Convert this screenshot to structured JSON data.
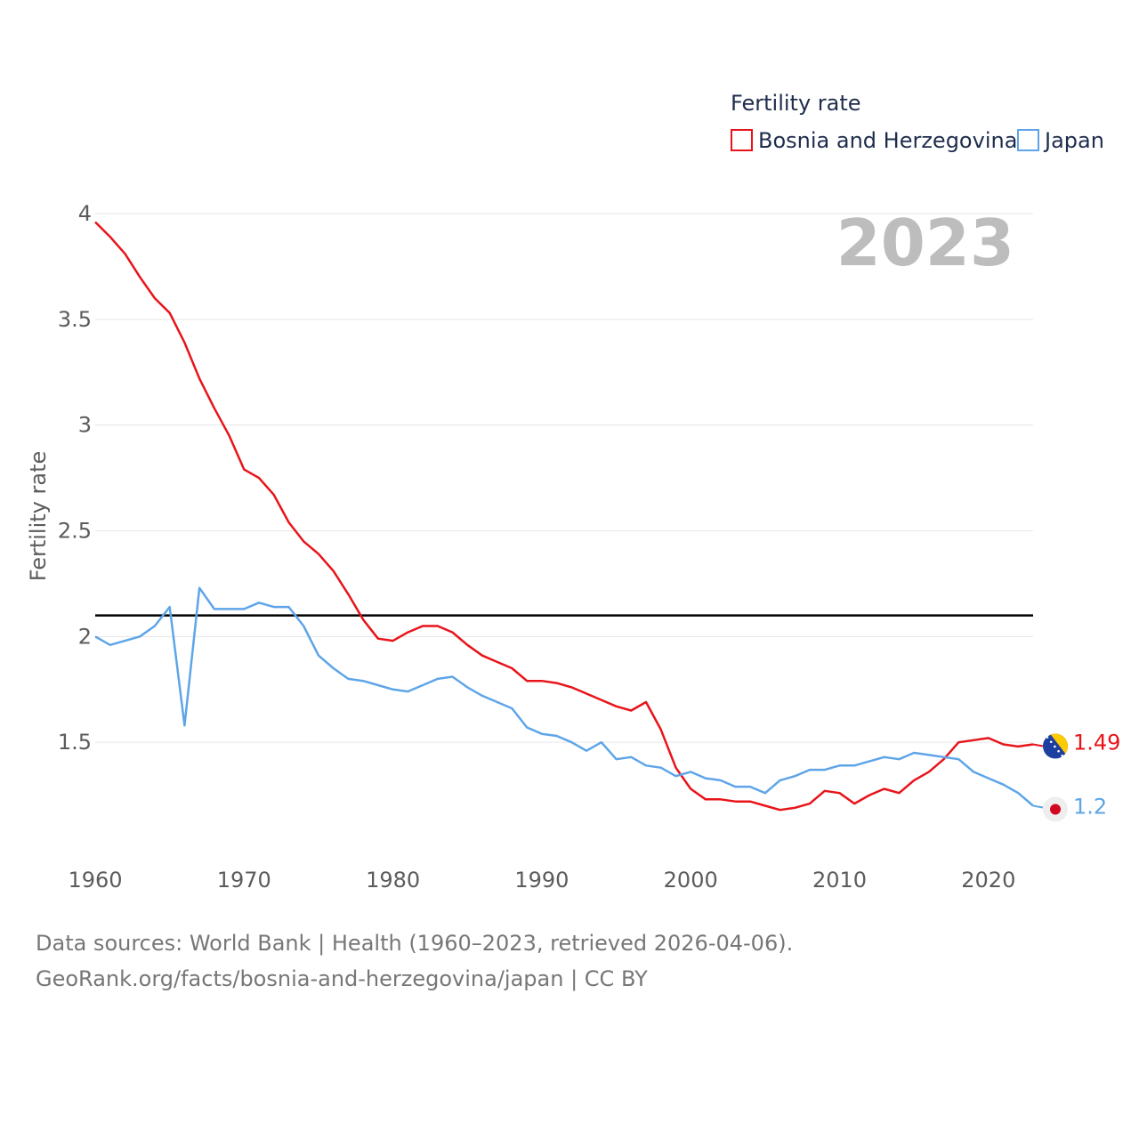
{
  "chart_data": {
    "type": "line",
    "ylabel": "Fertility rate",
    "xlabel": "",
    "xlim": [
      1960,
      2023
    ],
    "ylim": [
      1.0,
      4.0
    ],
    "y_ticks": [
      1.5,
      2,
      2.5,
      3,
      3.5,
      4
    ],
    "y_tick_labels": [
      "1.5",
      "2",
      "2.5",
      "3",
      "3.5",
      "4"
    ],
    "x_ticks": [
      1960,
      1970,
      1980,
      1990,
      2000,
      2010,
      2020
    ],
    "x_tick_labels": [
      "1960",
      "1970",
      "1980",
      "1990",
      "2000",
      "2010",
      "2020"
    ],
    "legend_title": "Fertility rate",
    "legend_position": "top-right",
    "current_year": "2023",
    "reference_line": 2.1,
    "x": [
      1960,
      1961,
      1962,
      1963,
      1964,
      1965,
      1966,
      1967,
      1968,
      1969,
      1970,
      1971,
      1972,
      1973,
      1974,
      1975,
      1976,
      1977,
      1978,
      1979,
      1980,
      1981,
      1982,
      1983,
      1984,
      1985,
      1986,
      1987,
      1988,
      1989,
      1990,
      1991,
      1992,
      1993,
      1994,
      1995,
      1996,
      1997,
      1998,
      1999,
      2000,
      2001,
      2002,
      2003,
      2004,
      2005,
      2006,
      2007,
      2008,
      2009,
      2010,
      2011,
      2012,
      2013,
      2014,
      2015,
      2016,
      2017,
      2018,
      2019,
      2020,
      2021,
      2022,
      2023
    ],
    "series": [
      {
        "name": "Bosnia and Herzegovina",
        "color": "#e8141a",
        "end_label": "1.49",
        "values": [
          3.96,
          3.89,
          3.81,
          3.7,
          3.6,
          3.53,
          3.39,
          3.22,
          3.08,
          2.95,
          2.79,
          2.75,
          2.67,
          2.54,
          2.45,
          2.39,
          2.31,
          2.2,
          2.08,
          1.99,
          1.98,
          2.02,
          2.05,
          2.05,
          2.02,
          1.96,
          1.91,
          1.88,
          1.85,
          1.79,
          1.79,
          1.78,
          1.76,
          1.73,
          1.7,
          1.67,
          1.65,
          1.69,
          1.56,
          1.38,
          1.28,
          1.23,
          1.23,
          1.22,
          1.22,
          1.2,
          1.18,
          1.19,
          1.21,
          1.27,
          1.26,
          1.21,
          1.25,
          1.28,
          1.26,
          1.32,
          1.36,
          1.42,
          1.5,
          1.51,
          1.52,
          1.49,
          1.48,
          1.49
        ]
      },
      {
        "name": "Japan",
        "color": "#5ea5e8",
        "end_label": "1.2",
        "values": [
          2.0,
          1.96,
          1.98,
          2.0,
          2.05,
          2.14,
          1.58,
          2.23,
          2.13,
          2.13,
          2.13,
          2.16,
          2.14,
          2.14,
          2.05,
          1.91,
          1.85,
          1.8,
          1.79,
          1.77,
          1.75,
          1.74,
          1.77,
          1.8,
          1.81,
          1.76,
          1.72,
          1.69,
          1.66,
          1.57,
          1.54,
          1.53,
          1.5,
          1.46,
          1.5,
          1.42,
          1.43,
          1.39,
          1.38,
          1.34,
          1.36,
          1.33,
          1.32,
          1.29,
          1.29,
          1.26,
          1.32,
          1.34,
          1.37,
          1.37,
          1.39,
          1.39,
          1.41,
          1.43,
          1.42,
          1.45,
          1.44,
          1.43,
          1.42,
          1.36,
          1.33,
          1.3,
          1.26,
          1.2
        ]
      }
    ]
  },
  "icons": {
    "bosnia": "bosnia-flag-icon",
    "japan": "japan-flag-icon"
  },
  "source": {
    "line1": "Data sources: World Bank | Health (1960–2023, retrieved 2026-04-06).",
    "line2": "GeoRank.org/facts/bosnia-and-herzegovina/japan | CC BY"
  }
}
